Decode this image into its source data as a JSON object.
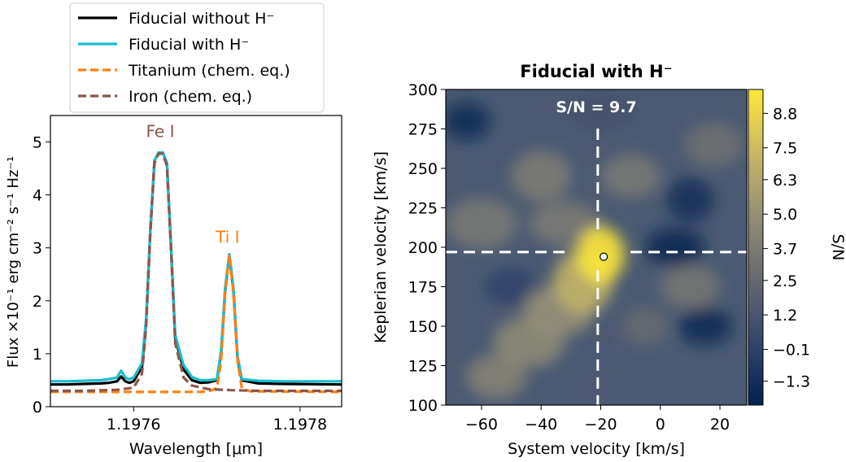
{
  "chart_data": [
    {
      "type": "line",
      "xlabel": "Wavelength [μm]",
      "ylabel": "Flux ×10⁻¹ erg cm⁻² s⁻¹ Hz⁻¹",
      "xlim": [
        1.1975,
        1.19785
      ],
      "ylim": [
        0,
        5.5
      ],
      "xticks": [
        1.1976,
        1.1978
      ],
      "xtick_labels": [
        "1.1976",
        "1.1978"
      ],
      "yticks": [
        0,
        1,
        2,
        3,
        4,
        5
      ],
      "ytick_labels": [
        "0",
        "1",
        "2",
        "3",
        "4",
        "5"
      ],
      "legend_position": "above",
      "annotations": [
        {
          "text": "Fe I",
          "x": 1.197632,
          "y": 5.0,
          "color": "#8c564b"
        },
        {
          "text": "Ti I",
          "x": 1.197713,
          "y": 3.0,
          "color": "#ff7f0e"
        }
      ],
      "series": [
        {
          "name": "Fiducial without H⁻",
          "color": "#000000",
          "style": "solid",
          "x": [
            1.1975,
            1.19752,
            1.19754,
            1.19756,
            1.19757,
            1.19758,
            1.197585,
            1.19759,
            1.197595,
            1.1976,
            1.19761,
            1.197615,
            1.19762,
            1.197625,
            1.19763,
            1.197635,
            1.19764,
            1.197645,
            1.19765,
            1.19766,
            1.197665,
            1.19767,
            1.19768,
            1.19769,
            1.1977,
            1.197705,
            1.19771,
            1.197715,
            1.19772,
            1.197725,
            1.19773,
            1.19775,
            1.19778,
            1.19785
          ],
          "y": [
            0.42,
            0.42,
            0.43,
            0.44,
            0.45,
            0.48,
            0.57,
            0.48,
            0.45,
            0.48,
            0.75,
            1.6,
            3.3,
            4.65,
            4.8,
            4.8,
            4.6,
            3.0,
            1.3,
            0.7,
            0.6,
            0.5,
            0.45,
            0.46,
            0.5,
            1.0,
            2.2,
            2.87,
            2.2,
            0.9,
            0.5,
            0.44,
            0.43,
            0.42
          ]
        },
        {
          "name": "Fiducial with H⁻",
          "color": "#17becf",
          "style": "solid",
          "x": [
            1.1975,
            1.19752,
            1.19754,
            1.19756,
            1.19757,
            1.19758,
            1.197585,
            1.19759,
            1.197595,
            1.1976,
            1.19761,
            1.197615,
            1.19762,
            1.197625,
            1.19763,
            1.197635,
            1.19764,
            1.197645,
            1.19765,
            1.19766,
            1.197665,
            1.19767,
            1.19768,
            1.19769,
            1.1977,
            1.197705,
            1.19771,
            1.197715,
            1.19772,
            1.197725,
            1.19773,
            1.19775,
            1.19778,
            1.19785
          ],
          "y": [
            0.48,
            0.48,
            0.49,
            0.5,
            0.52,
            0.55,
            0.68,
            0.55,
            0.52,
            0.55,
            0.82,
            1.65,
            3.3,
            4.65,
            4.8,
            4.8,
            4.6,
            3.05,
            1.35,
            0.78,
            0.68,
            0.56,
            0.5,
            0.5,
            0.52,
            1.05,
            2.25,
            2.88,
            2.25,
            0.95,
            0.52,
            0.49,
            0.48,
            0.48
          ]
        },
        {
          "name": "Titanium (chem. eq.)",
          "color": "#ff7f0e",
          "style": "dashed",
          "x": [
            1.1975,
            1.1976,
            1.19768,
            1.19769,
            1.1977,
            1.197705,
            1.19771,
            1.197715,
            1.19772,
            1.197725,
            1.19773,
            1.19774,
            1.19785
          ],
          "y": [
            0.28,
            0.28,
            0.28,
            0.29,
            0.35,
            0.85,
            2.15,
            2.87,
            2.15,
            0.85,
            0.35,
            0.29,
            0.28
          ]
        },
        {
          "name": "Iron (chem. eq.)",
          "color": "#8c564b",
          "style": "dashed",
          "x": [
            1.1975,
            1.19754,
            1.19758,
            1.1976,
            1.19761,
            1.197615,
            1.19762,
            1.197625,
            1.19763,
            1.197635,
            1.19764,
            1.197645,
            1.19765,
            1.19766,
            1.19767,
            1.19769,
            1.19772,
            1.19775,
            1.19785
          ],
          "y": [
            0.3,
            0.3,
            0.32,
            0.36,
            0.62,
            1.5,
            3.25,
            4.6,
            4.78,
            4.78,
            4.55,
            2.95,
            1.2,
            0.55,
            0.4,
            0.33,
            0.31,
            0.3,
            0.3
          ]
        }
      ]
    },
    {
      "type": "heatmap",
      "title": "Fiducial with H⁻",
      "xlabel": "System velocity [km/s]",
      "ylabel": "Keplerian velocity [km/s]",
      "xlim": [
        -72,
        29
      ],
      "ylim": [
        100,
        300
      ],
      "xticks": [
        -60,
        -40,
        -20,
        0,
        20
      ],
      "xtick_labels": [
        "−60",
        "−40",
        "−20",
        "0",
        "20"
      ],
      "yticks": [
        100,
        125,
        150,
        175,
        200,
        225,
        250,
        275,
        300
      ],
      "ytick_labels": [
        "100",
        "125",
        "150",
        "175",
        "200",
        "225",
        "250",
        "275",
        "300"
      ],
      "annotation": "S/N = 9.7",
      "marker_point": {
        "x": -19,
        "y": 194
      },
      "crosshair": {
        "x": -21,
        "y": 197
      },
      "colorbar": {
        "label": "S/N",
        "range": [
          -2.2,
          9.7
        ],
        "ticks": [
          8.8,
          7.5,
          6.3,
          5.0,
          3.7,
          2.5,
          1.2,
          -0.1,
          -1.3
        ],
        "tick_labels": [
          "8.8",
          "7.5",
          "6.3",
          "5.0",
          "3.7",
          "2.5",
          "1.2",
          "−0.1",
          "−1.3"
        ],
        "colors": [
          "#00224e",
          "#35456c",
          "#666970",
          "#948e77",
          "#c8b866",
          "#fee838"
        ]
      }
    }
  ]
}
